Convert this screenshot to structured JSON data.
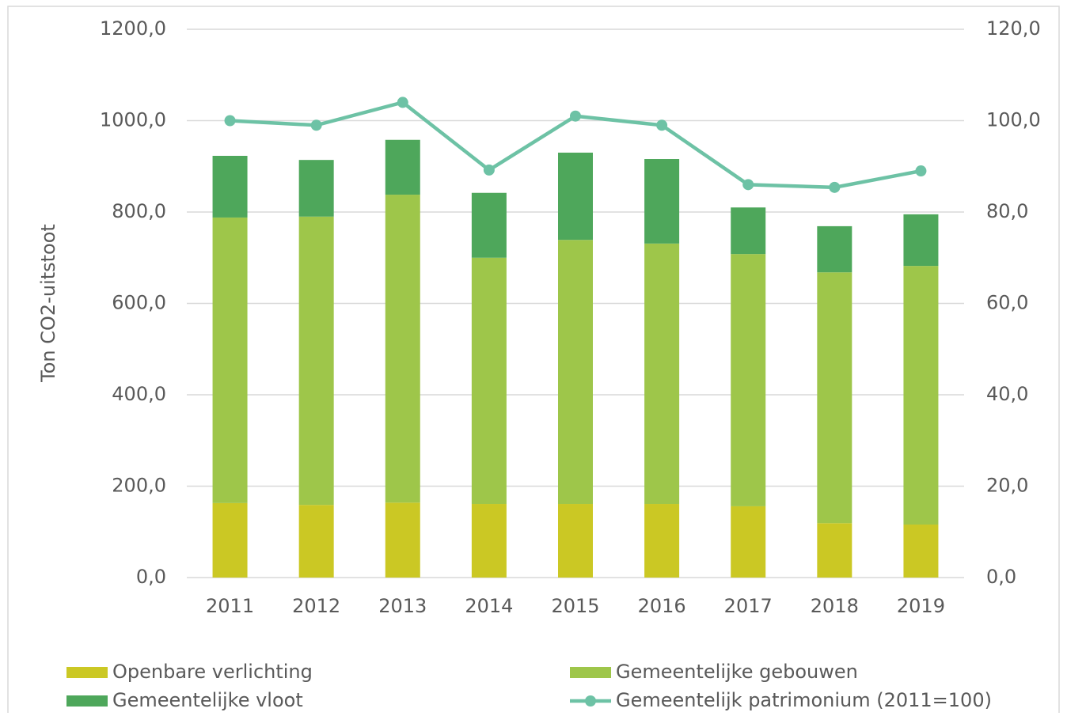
{
  "chart_data": {
    "type": "bar",
    "stacked": true,
    "y_label": "Ton CO2-uitstoot",
    "categories": [
      "2011",
      "2012",
      "2013",
      "2014",
      "2015",
      "2016",
      "2017",
      "2018",
      "2019"
    ],
    "series": [
      {
        "name": "Openbare verlichting",
        "color": "#cbc824",
        "values": [
          163,
          159,
          164,
          161,
          161,
          161,
          156,
          119,
          116
        ]
      },
      {
        "name": "Gemeentelijke gebouwen",
        "color": "#9ec64a",
        "values": [
          625,
          631,
          674,
          539,
          578,
          570,
          552,
          549,
          566
        ]
      },
      {
        "name": "Gemeentelijke vloot",
        "color": "#4ea75b",
        "values": [
          135,
          124,
          120,
          142,
          191,
          185,
          102,
          101,
          113
        ]
      },
      {
        "name": "Gemeentelijk patrimonium (2011=100)",
        "color": "#6dc2a5",
        "type": "line",
        "axis": "y2",
        "values": [
          100,
          99,
          104,
          89.2,
          101,
          99,
          86,
          85.4,
          89
        ]
      }
    ],
    "ylim": [
      0,
      1200
    ],
    "yticks": [
      {
        "value": 0,
        "label": "0,0"
      },
      {
        "value": 200,
        "label": "200,0"
      },
      {
        "value": 400,
        "label": "400,0"
      },
      {
        "value": 600,
        "label": "600,0"
      },
      {
        "value": 800,
        "label": "800,0"
      },
      {
        "value": 1000,
        "label": "1000,0"
      },
      {
        "value": 1200,
        "label": "1200,0"
      }
    ],
    "y2lim": [
      0,
      120
    ],
    "y2ticks": [
      {
        "value": 0,
        "label": "0,0"
      },
      {
        "value": 20,
        "label": "20,0"
      },
      {
        "value": 40,
        "label": "40,0"
      },
      {
        "value": 60,
        "label": "60,0"
      },
      {
        "value": 80,
        "label": "80,0"
      },
      {
        "value": 100,
        "label": "100,0"
      },
      {
        "value": 120,
        "label": "120,0"
      }
    ],
    "grid": true,
    "legend": "bottom"
  }
}
